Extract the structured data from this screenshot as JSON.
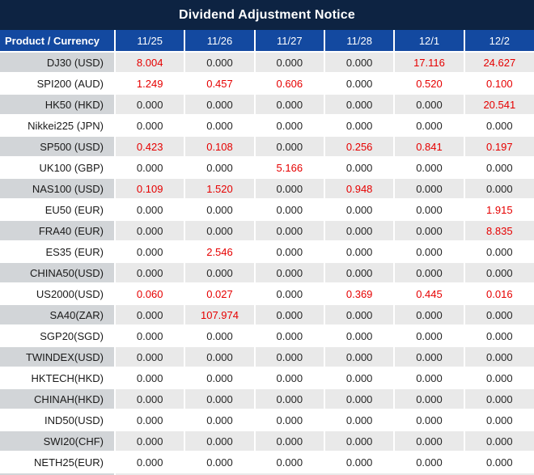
{
  "title": "Dividend Adjustment Notice",
  "colors": {
    "title_bar": "#0d2342",
    "header_bg": "#1349a0",
    "header_text": "#ffffff",
    "row_label_gray": "#d2d5d8",
    "row_cell_gray": "#e9e9e9",
    "row_white": "#ffffff",
    "divider": "#ffffff",
    "value_zero": "#262626",
    "value_nonzero_red": "#e60000"
  },
  "table": {
    "product_header": "Product / Currency",
    "date_headers": [
      "11/25",
      "11/26",
      "11/27",
      "11/28",
      "12/1",
      "12/2"
    ],
    "rows": [
      {
        "product": "DJ30 (USD)",
        "values": [
          "8.004",
          "0.000",
          "0.000",
          "0.000",
          "17.116",
          "24.627"
        ]
      },
      {
        "product": "SPI200 (AUD)",
        "values": [
          "1.249",
          "0.457",
          "0.606",
          "0.000",
          "0.520",
          "0.100"
        ]
      },
      {
        "product": "HK50 (HKD)",
        "values": [
          "0.000",
          "0.000",
          "0.000",
          "0.000",
          "0.000",
          "20.541"
        ]
      },
      {
        "product": "Nikkei225 (JPN)",
        "values": [
          "0.000",
          "0.000",
          "0.000",
          "0.000",
          "0.000",
          "0.000"
        ]
      },
      {
        "product": "SP500 (USD)",
        "values": [
          "0.423",
          "0.108",
          "0.000",
          "0.256",
          "0.841",
          "0.197"
        ]
      },
      {
        "product": "UK100 (GBP)",
        "values": [
          "0.000",
          "0.000",
          "5.166",
          "0.000",
          "0.000",
          "0.000"
        ]
      },
      {
        "product": "NAS100 (USD)",
        "values": [
          "0.109",
          "1.520",
          "0.000",
          "0.948",
          "0.000",
          "0.000"
        ]
      },
      {
        "product": "EU50 (EUR)",
        "values": [
          "0.000",
          "0.000",
          "0.000",
          "0.000",
          "0.000",
          "1.915"
        ]
      },
      {
        "product": "FRA40 (EUR)",
        "values": [
          "0.000",
          "0.000",
          "0.000",
          "0.000",
          "0.000",
          "8.835"
        ]
      },
      {
        "product": "ES35 (EUR)",
        "values": [
          "0.000",
          "2.546",
          "0.000",
          "0.000",
          "0.000",
          "0.000"
        ]
      },
      {
        "product": "CHINA50(USD)",
        "values": [
          "0.000",
          "0.000",
          "0.000",
          "0.000",
          "0.000",
          "0.000"
        ]
      },
      {
        "product": "US2000(USD)",
        "values": [
          "0.060",
          "0.027",
          "0.000",
          "0.369",
          "0.445",
          "0.016"
        ]
      },
      {
        "product": "SA40(ZAR)",
        "values": [
          "0.000",
          "107.974",
          "0.000",
          "0.000",
          "0.000",
          "0.000"
        ]
      },
      {
        "product": "SGP20(SGD)",
        "values": [
          "0.000",
          "0.000",
          "0.000",
          "0.000",
          "0.000",
          "0.000"
        ]
      },
      {
        "product": "TWINDEX(USD)",
        "values": [
          "0.000",
          "0.000",
          "0.000",
          "0.000",
          "0.000",
          "0.000"
        ]
      },
      {
        "product": "HKTECH(HKD)",
        "values": [
          "0.000",
          "0.000",
          "0.000",
          "0.000",
          "0.000",
          "0.000"
        ]
      },
      {
        "product": "CHINAH(HKD)",
        "values": [
          "0.000",
          "0.000",
          "0.000",
          "0.000",
          "0.000",
          "0.000"
        ]
      },
      {
        "product": "IND50(USD)",
        "values": [
          "0.000",
          "0.000",
          "0.000",
          "0.000",
          "0.000",
          "0.000"
        ]
      },
      {
        "product": "SWI20(CHF)",
        "values": [
          "0.000",
          "0.000",
          "0.000",
          "0.000",
          "0.000",
          "0.000"
        ]
      },
      {
        "product": "NETH25(EUR)",
        "values": [
          "0.000",
          "0.000",
          "0.000",
          "0.000",
          "0.000",
          "0.000"
        ]
      }
    ]
  }
}
